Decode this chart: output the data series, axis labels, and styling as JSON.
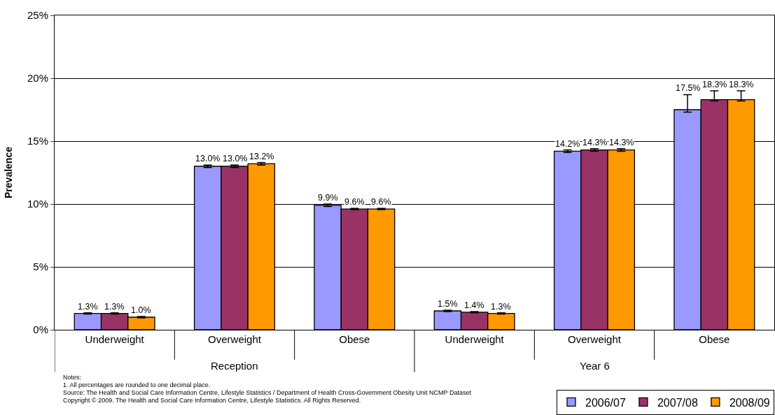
{
  "chart_data": {
    "type": "bar",
    "ylabel": "Prevalence",
    "categories": [
      "Underweight",
      "Overweight",
      "Obese",
      "Underweight",
      "Overweight",
      "Obese"
    ],
    "series": [
      {
        "name": "2006/07",
        "color": "#9999ff",
        "values": [
          1.3,
          13.0,
          9.9,
          1.5,
          14.2,
          17.5
        ],
        "value_labels": [
          "1.3%",
          "13.0%",
          "9.9%",
          "1.5%",
          "14.2%",
          "17.5%"
        ],
        "errors": [
          0.05,
          0.1,
          0.1,
          0.05,
          0.1,
          [
            17.3,
            18.7
          ]
        ]
      },
      {
        "name": "2007/08",
        "color": "#993366",
        "values": [
          1.3,
          13.0,
          9.6,
          1.4,
          14.3,
          18.3
        ],
        "value_labels": [
          "1.3%",
          "13.0%",
          "9.6%",
          "1.4%",
          "14.3%",
          "18.3%"
        ],
        "errors": [
          0.05,
          0.1,
          0.05,
          0.05,
          0.1,
          [
            18.2,
            19.0
          ]
        ]
      },
      {
        "name": "2008/09",
        "color": "#ff9900",
        "values": [
          1.0,
          13.2,
          9.6,
          1.3,
          14.3,
          18.3
        ],
        "value_labels": [
          "1.0%",
          "13.2%",
          "9.6%",
          "1.3%",
          "14.3%",
          "18.3%"
        ],
        "errors": [
          0.05,
          0.1,
          0.05,
          0.05,
          0.1,
          [
            18.2,
            19.0
          ]
        ]
      }
    ],
    "ylim": [
      0,
      25
    ],
    "yticks": [
      {
        "value": 0,
        "label": "0%"
      },
      {
        "value": 5,
        "label": "5%"
      },
      {
        "value": 10,
        "label": "10%"
      },
      {
        "value": 15,
        "label": "15%"
      },
      {
        "value": 20,
        "label": "20%"
      },
      {
        "value": 25,
        "label": "25%"
      }
    ],
    "grid": "y",
    "legend": "bottom right",
    "annotations": [
      "Reception",
      "Year 6",
      "Notes:",
      "1. All percentages are rounded to one decimal place.",
      "Source: The Health and Social Care Information Centre, Lifestyle Statistics / Department of Health Cross-Government Obesity Unit NCMP Dataset",
      "Copyright © 2009. The Health and Social Care Information Centre, Lifestyle Statistics. All Rights Reserved."
    ]
  }
}
